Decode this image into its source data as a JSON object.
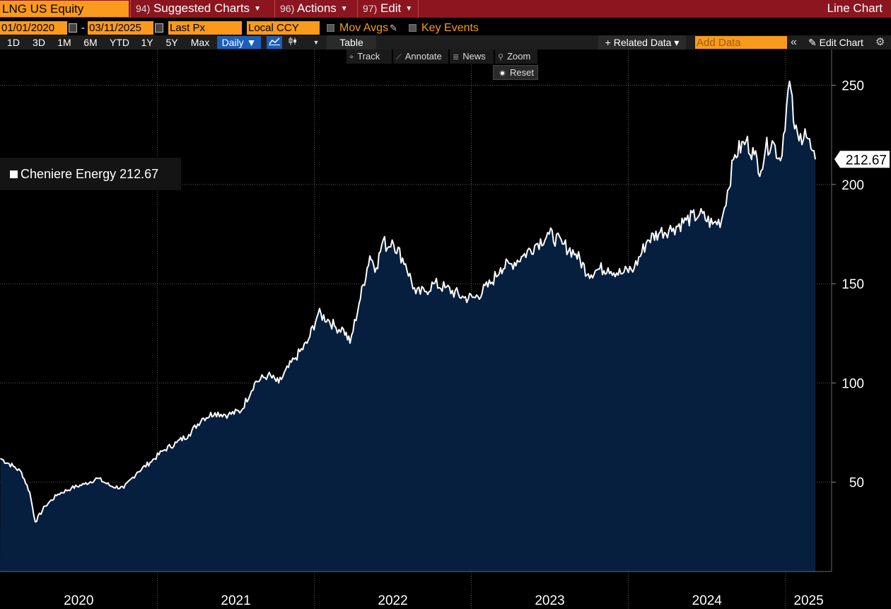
{
  "topbar": {
    "ticker": "LNG US Equity",
    "suggested": {
      "num": "94)",
      "label": "Suggested Charts"
    },
    "actions": {
      "num": "96)",
      "label": "Actions"
    },
    "edit": {
      "num": "97)",
      "label": "Edit"
    },
    "chart_type": "Line Chart"
  },
  "controls": {
    "start_date": "01/01/2020",
    "date_sep": "-",
    "end_date": "03/11/2025",
    "field": "Last Px",
    "currency": "Local CCY",
    "mov_avgs": "Mov Avgs",
    "key_events": "Key Events"
  },
  "range_bar": {
    "ranges": [
      "1D",
      "3D",
      "1M",
      "6M",
      "YTD",
      "1Y",
      "5Y",
      "Max"
    ],
    "periodicity": "Daily ▼",
    "table": "Table",
    "related": "+ Related Data ▾",
    "add_data_placeholder": "Add Data",
    "collapse": "«",
    "edit_chart": "✎ Edit Chart",
    "gear": "⚙"
  },
  "tools": {
    "track": "Track",
    "annotate": "Annotate",
    "news": "News",
    "zoom": "Zoom",
    "reset": "Reset"
  },
  "legend": {
    "label": "Cheniere Energy 212.67"
  },
  "colors": {
    "accent": "#f99a1c",
    "topbar": "#8b1620",
    "fill": "#061f3f",
    "line": "#ffffff",
    "active_blue": "#1c5fb8"
  },
  "chart_data": {
    "type": "area",
    "title": "",
    "series": [
      {
        "x": [
          "2020-01-02",
          "2020-02-01",
          "2020-02-20",
          "2020-03-10",
          "2020-03-23",
          "2020-04-15",
          "2020-05-15",
          "2020-06-15",
          "2020-07-15",
          "2020-08-15",
          "2020-09-15",
          "2020-10-15",
          "2020-11-15",
          "2020-12-15",
          "2021-01-15",
          "2021-02-15",
          "2021-03-15",
          "2021-04-15",
          "2021-05-15",
          "2021-06-15",
          "2021-07-15",
          "2021-08-15",
          "2021-09-15",
          "2021-10-10",
          "2021-11-15",
          "2021-12-15",
          "2022-01-10",
          "2022-02-01",
          "2022-02-20",
          "2022-03-10",
          "2022-03-25",
          "2022-04-15",
          "2022-05-10",
          "2022-05-25",
          "2022-06-10",
          "2022-06-20",
          "2022-07-01",
          "2022-08-01",
          "2022-08-25",
          "2022-09-15",
          "2022-10-05",
          "2022-11-01",
          "2022-12-15",
          "2023-01-10",
          "2023-02-15",
          "2023-03-10",
          "2023-04-05",
          "2023-05-01",
          "2023-06-01",
          "2023-07-01",
          "2023-08-01",
          "2023-09-01",
          "2023-09-30",
          "2023-10-20",
          "2023-11-15",
          "2023-12-15",
          "2024-01-15",
          "2024-02-15",
          "2024-03-15",
          "2024-04-15",
          "2024-05-15",
          "2024-06-15",
          "2024-07-15",
          "2024-08-05",
          "2024-09-05",
          "2024-10-01",
          "2024-10-20",
          "2024-11-05",
          "2024-11-15",
          "2024-12-01",
          "2024-12-20",
          "2025-01-10",
          "2025-01-22",
          "2025-02-01",
          "2025-02-15",
          "2025-03-01",
          "2025-03-11"
        ],
        "values": [
          62,
          58,
          55,
          45,
          30,
          38,
          44,
          47,
          49,
          52,
          48,
          47,
          55,
          60,
          66,
          70,
          74,
          82,
          85,
          84,
          86,
          100,
          104,
          100,
          112,
          120,
          135,
          132,
          128,
          127,
          120,
          140,
          164,
          158,
          172,
          168,
          172,
          160,
          145,
          146,
          150,
          148,
          143,
          143,
          150,
          158,
          160,
          164,
          170,
          175,
          170,
          165,
          155,
          157,
          158,
          155,
          158,
          172,
          176,
          178,
          182,
          185,
          180,
          182,
          215,
          222,
          215,
          207,
          218,
          222,
          212,
          252,
          228,
          222,
          228,
          218,
          212.67
        ]
      }
    ],
    "series_label": "Cheniere Energy",
    "last_value": "212.67",
    "x_start": "2020-01-01",
    "x_end": "2025-03-11",
    "ylim": [
      5,
      268
    ],
    "yticks": [
      50,
      100,
      150,
      200,
      250
    ],
    "xtick_labels": [
      "2020",
      "2021",
      "2022",
      "2023",
      "2024",
      "2025"
    ],
    "grid": true,
    "legend_position": "top-left"
  }
}
